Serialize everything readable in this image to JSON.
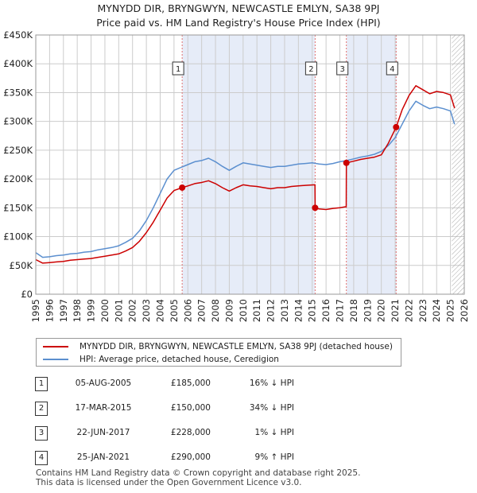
{
  "title_line1": "MYNYDD DIR, BRYNGWYN, NEWCASTLE EMLYN, SA38 9PJ",
  "title_line2": "Price paid vs. HM Land Registry's House Price Index (HPI)",
  "legend": {
    "red_label": "MYNYDD DIR, BRYNGWYN, NEWCASTLE EMLYN, SA38 9PJ (detached house)",
    "blue_label": "HPI: Average price, detached house, Ceredigion"
  },
  "colors": {
    "property": "#cc0000",
    "hpi": "#5b8fcf",
    "shade": "#e6ecf8",
    "marker_line": "#e07070",
    "grid": "#cccccc"
  },
  "transactions": [
    {
      "num": "1",
      "date": "05-AUG-2005",
      "price": "£185,000",
      "rel": "16% ↓ HPI"
    },
    {
      "num": "2",
      "date": "17-MAR-2015",
      "price": "£150,000",
      "rel": "34% ↓ HPI"
    },
    {
      "num": "3",
      "date": "22-JUN-2017",
      "price": "£228,000",
      "rel": "1% ↓ HPI"
    },
    {
      "num": "4",
      "date": "25-JAN-2021",
      "price": "£290,000",
      "rel": "9% ↑ HPI"
    }
  ],
  "footer_line1": "Contains HM Land Registry data © Crown copyright and database right 2025.",
  "footer_line2": "This data is licensed under the Open Government Licence v3.0.",
  "chart_data": {
    "type": "line",
    "title": "Price paid vs. HM Land Registry's House Price Index (HPI)",
    "xlim": [
      1995,
      2026
    ],
    "ylim": [
      0,
      450000
    ],
    "xticks": [
      "1995",
      "1996",
      "1997",
      "1998",
      "1999",
      "2000",
      "2001",
      "2002",
      "2003",
      "2004",
      "2005",
      "2006",
      "2007",
      "2008",
      "2009",
      "2010",
      "2011",
      "2012",
      "2013",
      "2014",
      "2015",
      "2016",
      "2017",
      "2018",
      "2019",
      "2020",
      "2021",
      "2022",
      "2023",
      "2024",
      "2025",
      "2026"
    ],
    "yticks": [
      {
        "value": 0,
        "label": "£0"
      },
      {
        "value": 50000,
        "label": "£50K"
      },
      {
        "value": 100000,
        "label": "£100K"
      },
      {
        "value": 150000,
        "label": "£150K"
      },
      {
        "value": 200000,
        "label": "£200K"
      },
      {
        "value": 250000,
        "label": "£250K"
      },
      {
        "value": 300000,
        "label": "£300K"
      },
      {
        "value": 350000,
        "label": "£350K"
      },
      {
        "value": 400000,
        "label": "£400K"
      },
      {
        "value": 450000,
        "label": "£450K"
      }
    ],
    "shaded_ranges": [
      [
        2005.6,
        2015.2
      ],
      [
        2017.5,
        2021.1
      ]
    ],
    "forecast_start": 2025.1,
    "sales": [
      {
        "label": "1",
        "x": 2005.59,
        "y": 185000
      },
      {
        "label": "2",
        "x": 2015.21,
        "y": 150000
      },
      {
        "label": "3",
        "x": 2017.47,
        "y": 228000
      },
      {
        "label": "4",
        "x": 2021.07,
        "y": 290000
      }
    ],
    "series": [
      {
        "name": "HPI: Average price, detached house, Ceredigion",
        "color": "#5b8fcf",
        "x": [
          1995,
          1995.5,
          1996,
          1996.5,
          1997,
          1997.5,
          1998,
          1998.5,
          1999,
          1999.5,
          2000,
          2000.5,
          2001,
          2001.5,
          2002,
          2002.5,
          2003,
          2003.5,
          2004,
          2004.5,
          2005,
          2005.5,
          2006,
          2006.5,
          2007,
          2007.5,
          2008,
          2008.5,
          2009,
          2009.5,
          2010,
          2010.5,
          2011,
          2011.5,
          2012,
          2012.5,
          2013,
          2013.5,
          2014,
          2014.5,
          2015,
          2015.5,
          2016,
          2016.5,
          2017,
          2017.5,
          2018,
          2018.5,
          2019,
          2019.5,
          2020,
          2020.5,
          2021,
          2021.5,
          2022,
          2022.5,
          2023,
          2023.5,
          2024,
          2024.5,
          2025,
          2025.3
        ],
        "y": [
          72000,
          64000,
          65000,
          67000,
          68000,
          70000,
          71000,
          73000,
          74000,
          77000,
          79000,
          81000,
          84000,
          90000,
          97000,
          110000,
          128000,
          150000,
          175000,
          200000,
          215000,
          220000,
          225000,
          230000,
          232000,
          236000,
          230000,
          222000,
          215000,
          222000,
          228000,
          226000,
          224000,
          222000,
          220000,
          222000,
          222000,
          224000,
          226000,
          227000,
          228000,
          226000,
          225000,
          227000,
          230000,
          232000,
          235000,
          238000,
          240000,
          243000,
          248000,
          258000,
          272000,
          295000,
          318000,
          335000,
          328000,
          322000,
          325000,
          322000,
          318000,
          295000
        ]
      },
      {
        "name": "MYNYDD DIR, BRYNGWYN, NEWCASTLE EMLYN, SA38 9PJ (detached house)",
        "color": "#cc0000",
        "x": [
          1995,
          1995.5,
          1996,
          1996.5,
          1997,
          1997.5,
          1998,
          1998.5,
          1999,
          1999.5,
          2000,
          2000.5,
          2001,
          2001.5,
          2002,
          2002.5,
          2003,
          2003.5,
          2004,
          2004.5,
          2005,
          2005.59,
          2006,
          2006.5,
          2007,
          2007.5,
          2008,
          2008.5,
          2009,
          2009.5,
          2010,
          2010.5,
          2011,
          2011.5,
          2012,
          2012.5,
          2013,
          2013.5,
          2014,
          2014.5,
          2015.2,
          2015.21,
          2015.5,
          2016,
          2016.5,
          2017,
          2017.46,
          2017.47,
          2018,
          2018.5,
          2019,
          2019.5,
          2020,
          2020.5,
          2021.07,
          2021.5,
          2022,
          2022.5,
          2023,
          2023.5,
          2024,
          2024.5,
          2025,
          2025.3
        ],
        "y": [
          60000,
          54000,
          55000,
          56000,
          57000,
          59000,
          60000,
          61000,
          62000,
          64000,
          66000,
          68000,
          70000,
          75000,
          81000,
          92000,
          107000,
          125000,
          146000,
          167000,
          180000,
          185000,
          188000,
          192000,
          194000,
          197000,
          192000,
          185000,
          179000,
          185000,
          190000,
          188000,
          187000,
          185000,
          183000,
          185000,
          185000,
          187000,
          188000,
          189000,
          190000,
          150000,
          148000,
          147000,
          149000,
          150000,
          152000,
          228000,
          231000,
          234000,
          236000,
          238000,
          242000,
          262000,
          290000,
          320000,
          345000,
          362000,
          355000,
          348000,
          352000,
          350000,
          346000,
          323000
        ]
      }
    ]
  }
}
